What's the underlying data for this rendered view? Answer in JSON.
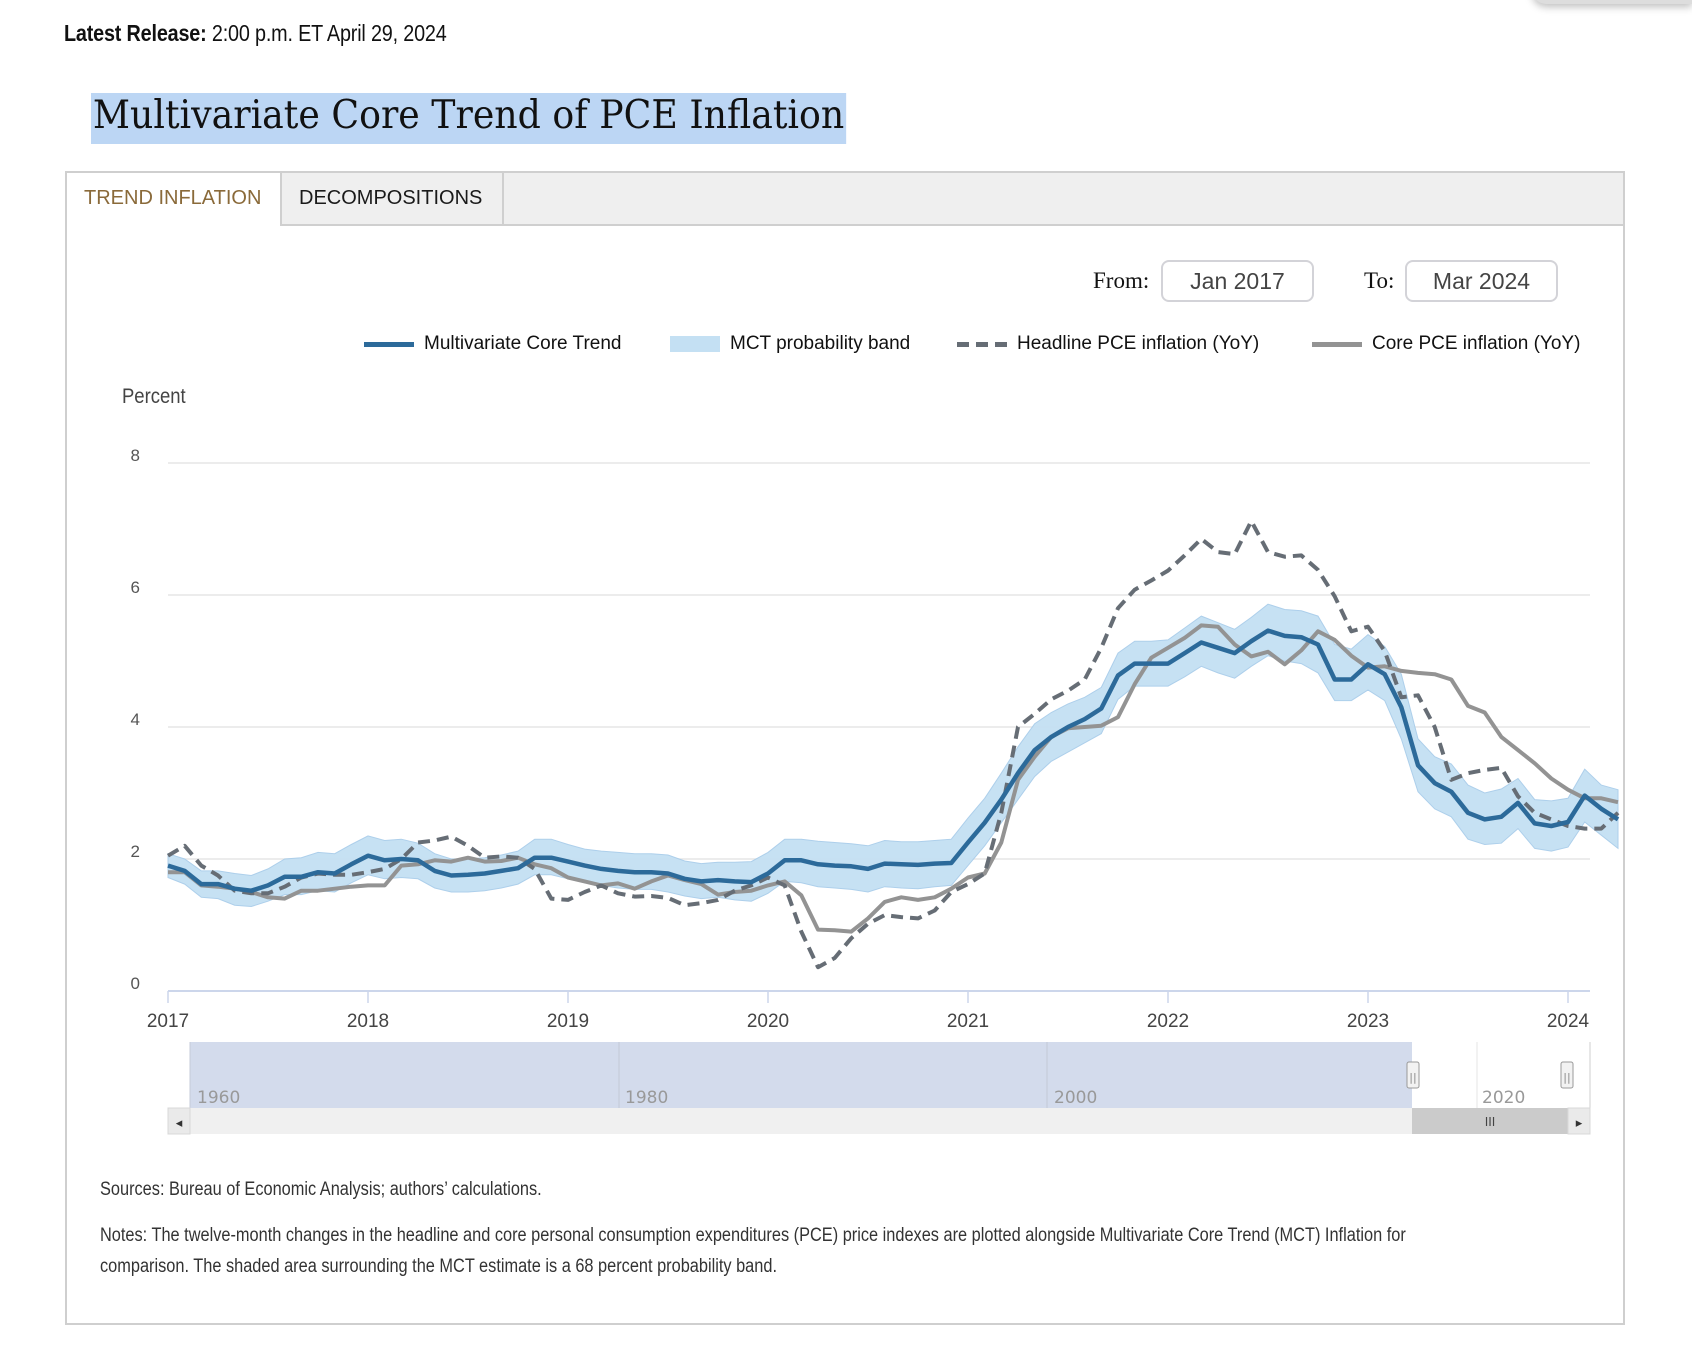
{
  "release": {
    "label": "Latest Release:",
    "value": "2:00 p.m. ET April 29, 2024"
  },
  "page_title": "Multivariate Core Trend of PCE Inflation",
  "tabs": [
    {
      "label": "TREND INFLATION",
      "active": true
    },
    {
      "label": "DECOMPOSITIONS",
      "active": false
    }
  ],
  "range": {
    "from_label": "From:",
    "from_value": "Jan 2017",
    "to_label": "To:",
    "to_value": "Mar 2024"
  },
  "legend": [
    {
      "label": "Multivariate Core Trend",
      "style": "solid",
      "color": "#2c6a9a"
    },
    {
      "label": "MCT probability band",
      "style": "band",
      "color": "#c4e0f3"
    },
    {
      "label": "Headline PCE inflation (YoY)",
      "style": "dashed",
      "color": "#666d75"
    },
    {
      "label": "Core PCE inflation (YoY)",
      "style": "solid",
      "color": "#939393"
    }
  ],
  "navigator": {
    "labels": [
      "1960",
      "1980",
      "2000",
      "2020"
    ],
    "left_arrow": "◂",
    "right_arrow": "▸",
    "scroll_grip": "III",
    "handle_grip": "||"
  },
  "sources": "Sources: Bureau of Economic Analysis; authors’ calculations.",
  "notes_line1": "Notes: The twelve-month changes in the headline and core personal consumption expenditures (PCE) price indexes are plotted alongside Multivariate Core Trend (MCT) Inflation for",
  "notes_line2": "comparison. The shaded area surrounding the MCT estimate is a 68 percent probability band.",
  "chart_data": {
    "type": "line",
    "title": "",
    "ylabel": "Percent",
    "xlabel": "",
    "ylim": [
      0,
      8
    ],
    "yticks": [
      "0",
      "2",
      "4",
      "6",
      "8"
    ],
    "xticks": [
      "2017",
      "2018",
      "2019",
      "2020",
      "2021",
      "2022",
      "2023",
      "2024"
    ],
    "x_start": "2017-01",
    "x_end": "2024-03",
    "frequency": "monthly",
    "grid": true,
    "legend_position": "top-right",
    "colors": {
      "mct": "#2c6a9a",
      "band": "#c4e0f3",
      "headline": "#666d75",
      "core": "#939393"
    },
    "series": [
      {
        "name": "Multivariate Core Trend",
        "key": "mct",
        "values": [
          1.9,
          1.82,
          1.62,
          1.62,
          1.55,
          1.52,
          1.6,
          1.73,
          1.73,
          1.8,
          1.78,
          1.92,
          2.05,
          1.98,
          2.0,
          1.98,
          1.82,
          1.75,
          1.76,
          1.78,
          1.82,
          1.86,
          2.02,
          2.02,
          1.96,
          1.9,
          1.85,
          1.82,
          1.8,
          1.8,
          1.78,
          1.7,
          1.66,
          1.68,
          1.66,
          1.65,
          1.78,
          1.98,
          1.98,
          1.92,
          1.9,
          1.89,
          1.85,
          1.93,
          1.92,
          1.91,
          1.93,
          1.94,
          2.25,
          2.55,
          2.9,
          3.3,
          3.65,
          3.85,
          4.0,
          4.12,
          4.28,
          4.78,
          4.96,
          4.96,
          4.96,
          5.12,
          5.28,
          5.2,
          5.12,
          5.3,
          5.46,
          5.38,
          5.36,
          5.25,
          4.72,
          4.72,
          4.95,
          4.8,
          4.3,
          3.42,
          3.15,
          3.02,
          2.7,
          2.6,
          2.64,
          2.85,
          2.54,
          2.5,
          2.56,
          2.96,
          2.76,
          2.6
        ]
      },
      {
        "name": "MCT probability band (upper)",
        "key": "band_hi",
        "values": [
          2.08,
          2.0,
          1.82,
          1.82,
          1.78,
          1.75,
          1.85,
          2.0,
          2.02,
          2.1,
          2.08,
          2.22,
          2.35,
          2.28,
          2.3,
          2.24,
          2.08,
          2.0,
          2.0,
          2.02,
          2.06,
          2.12,
          2.3,
          2.3,
          2.22,
          2.15,
          2.12,
          2.1,
          2.08,
          2.08,
          2.06,
          1.97,
          1.93,
          1.95,
          1.95,
          1.96,
          2.1,
          2.3,
          2.3,
          2.27,
          2.25,
          2.23,
          2.2,
          2.28,
          2.26,
          2.26,
          2.28,
          2.3,
          2.62,
          2.92,
          3.3,
          3.7,
          4.05,
          4.22,
          4.35,
          4.45,
          4.6,
          5.12,
          5.3,
          5.3,
          5.32,
          5.5,
          5.68,
          5.58,
          5.48,
          5.66,
          5.86,
          5.78,
          5.76,
          5.68,
          5.25,
          5.18,
          5.4,
          5.22,
          4.8,
          3.82,
          3.55,
          3.44,
          3.12,
          3.0,
          3.06,
          3.22,
          2.9,
          2.88,
          2.92,
          3.36,
          3.12,
          3.05
        ]
      },
      {
        "name": "MCT probability band (lower)",
        "key": "band_lo",
        "values": [
          1.72,
          1.62,
          1.42,
          1.4,
          1.3,
          1.28,
          1.36,
          1.46,
          1.46,
          1.52,
          1.5,
          1.64,
          1.76,
          1.7,
          1.72,
          1.7,
          1.56,
          1.5,
          1.5,
          1.52,
          1.56,
          1.62,
          1.76,
          1.76,
          1.7,
          1.64,
          1.6,
          1.56,
          1.54,
          1.54,
          1.5,
          1.44,
          1.4,
          1.42,
          1.38,
          1.36,
          1.48,
          1.66,
          1.64,
          1.58,
          1.56,
          1.54,
          1.5,
          1.58,
          1.56,
          1.55,
          1.58,
          1.6,
          1.9,
          2.2,
          2.55,
          2.9,
          3.25,
          3.48,
          3.62,
          3.76,
          3.9,
          4.42,
          4.62,
          4.62,
          4.62,
          4.76,
          4.92,
          4.82,
          4.74,
          4.92,
          5.08,
          5.0,
          4.96,
          4.82,
          4.4,
          4.4,
          4.56,
          4.4,
          3.82,
          3.02,
          2.76,
          2.64,
          2.3,
          2.22,
          2.24,
          2.46,
          2.16,
          2.12,
          2.18,
          2.56,
          2.36,
          2.16
        ]
      },
      {
        "name": "Headline PCE inflation (YoY)",
        "key": "headline",
        "values": [
          2.05,
          2.2,
          1.9,
          1.75,
          1.52,
          1.48,
          1.48,
          1.58,
          1.72,
          1.78,
          1.76,
          1.76,
          1.8,
          1.85,
          2.0,
          2.25,
          2.28,
          2.34,
          2.2,
          2.02,
          2.04,
          2.02,
          1.85,
          1.4,
          1.38,
          1.5,
          1.6,
          1.48,
          1.43,
          1.44,
          1.41,
          1.3,
          1.33,
          1.38,
          1.52,
          1.6,
          1.72,
          1.6,
          0.9,
          0.36,
          0.5,
          0.8,
          1.02,
          1.15,
          1.12,
          1.1,
          1.22,
          1.5,
          1.62,
          1.78,
          2.7,
          4.0,
          4.2,
          4.42,
          4.55,
          4.72,
          5.2,
          5.8,
          6.08,
          6.22,
          6.37,
          6.6,
          6.85,
          6.65,
          6.62,
          7.12,
          6.65,
          6.58,
          6.6,
          6.38,
          5.98,
          5.45,
          5.52,
          5.15,
          4.45,
          4.48,
          4.0,
          3.2,
          3.3,
          3.35,
          3.38,
          2.95,
          2.7,
          2.6,
          2.5,
          2.46,
          2.46,
          2.7
        ]
      },
      {
        "name": "Core PCE inflation (YoY)",
        "key": "core",
        "values": [
          1.8,
          1.8,
          1.6,
          1.58,
          1.55,
          1.5,
          1.42,
          1.4,
          1.52,
          1.52,
          1.55,
          1.58,
          1.6,
          1.6,
          1.9,
          1.92,
          1.98,
          1.96,
          2.02,
          1.96,
          1.97,
          2.02,
          1.92,
          1.86,
          1.72,
          1.66,
          1.6,
          1.63,
          1.55,
          1.66,
          1.75,
          1.68,
          1.62,
          1.46,
          1.5,
          1.52,
          1.6,
          1.66,
          1.45,
          0.93,
          0.92,
          0.9,
          1.1,
          1.35,
          1.42,
          1.38,
          1.42,
          1.55,
          1.72,
          1.78,
          2.25,
          3.2,
          3.55,
          3.85,
          3.98,
          4.0,
          4.02,
          4.15,
          4.65,
          5.05,
          5.2,
          5.35,
          5.54,
          5.52,
          5.25,
          5.07,
          5.14,
          4.95,
          5.16,
          5.45,
          5.32,
          5.08,
          4.9,
          4.92,
          4.85,
          4.82,
          4.8,
          4.72,
          4.32,
          4.22,
          3.85,
          3.65,
          3.45,
          3.22,
          3.05,
          2.92,
          2.92,
          2.86
        ]
      }
    ]
  }
}
